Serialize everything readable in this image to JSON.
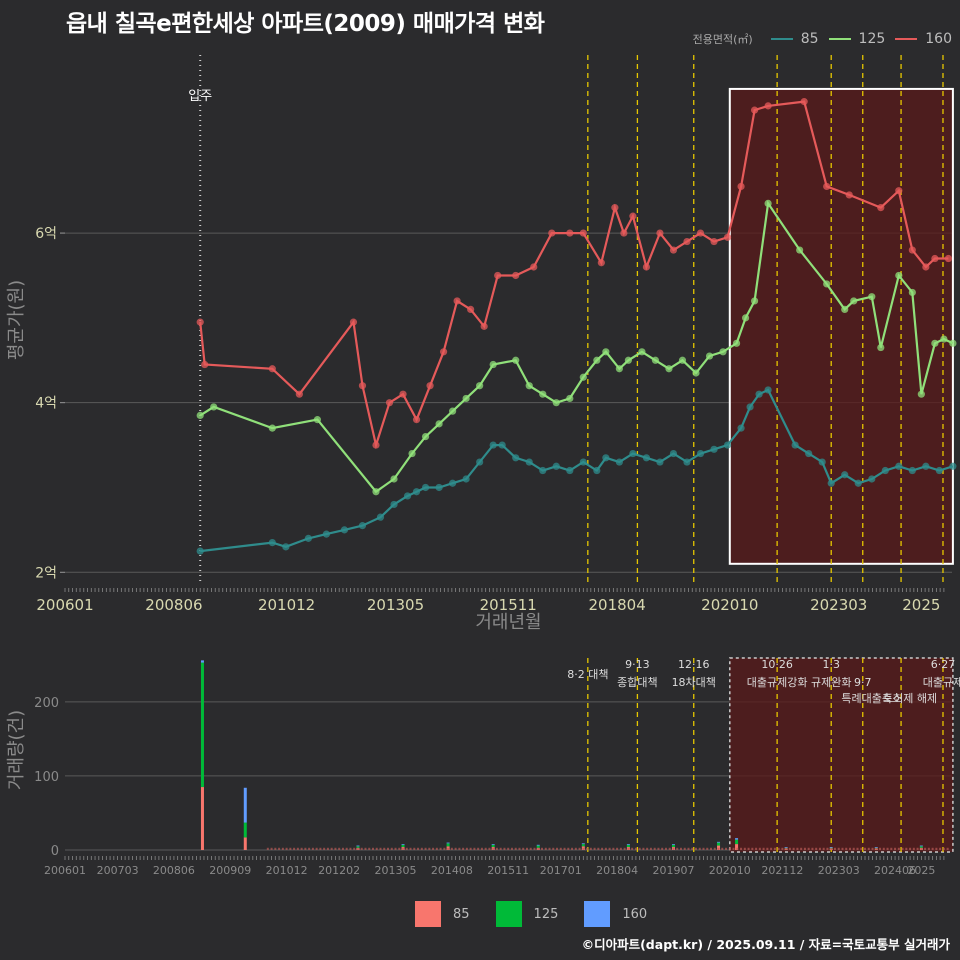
{
  "title": "읍내 칠곡e편한세상 아파트(2009) 매매가격 변화",
  "source": "©디아파트(dapt.kr) / 2025.09.11 / 자료=국토교통부 실거래가",
  "colors": {
    "background": "#2b2b2d",
    "s85": "#2f8c8c",
    "s125": "#90e07a",
    "s160": "#e55a5a",
    "bar85": "#f8766d",
    "bar125": "#00ba38",
    "bar160": "#619cff",
    "policy": "#e6c700",
    "highlight": "#5a1a1a"
  },
  "chart_data": [
    {
      "type": "line",
      "title": "읍내 칠곡e편한세상 아파트(2009) 매매가격 변화",
      "xlabel": "거래년월",
      "ylabel": "평균가(원)",
      "legend_title": "전용면적(㎡)",
      "legend_position": "top-right",
      "x_ticks": [
        "200601",
        "200806",
        "201012",
        "201305",
        "201511",
        "201804",
        "202010",
        "202303",
        "2025"
      ],
      "y_ticks": [
        {
          "value": 2,
          "label": "2억"
        },
        {
          "value": 4,
          "label": "4억"
        },
        {
          "value": 6,
          "label": "6억"
        }
      ],
      "ylim": [
        1.85,
        8.1
      ],
      "grid": true,
      "vlines": [
        {
          "x": 2009.0,
          "label": "입주",
          "style": "dotted-white"
        },
        {
          "x": 2017.6,
          "style": "dashed-yellow"
        },
        {
          "x": 2018.7,
          "style": "dashed-yellow"
        },
        {
          "x": 2019.95,
          "style": "dashed-yellow"
        },
        {
          "x": 2021.8,
          "style": "dashed-yellow"
        },
        {
          "x": 2023.0,
          "style": "dashed-yellow"
        },
        {
          "x": 2023.7,
          "style": "dashed-yellow"
        },
        {
          "x": 2024.55,
          "style": "dashed-yellow"
        },
        {
          "x": 2025.48,
          "style": "dashed-yellow"
        }
      ],
      "highlight_region": {
        "x": [
          2020.75,
          2025.7
        ],
        "y": [
          2.1,
          7.7
        ]
      },
      "series": [
        {
          "name": "85",
          "x": [
            2009.0,
            2010.6,
            2010.9,
            2011.4,
            2011.8,
            2012.2,
            2012.6,
            2013.0,
            2013.3,
            2013.6,
            2013.8,
            2014.0,
            2014.3,
            2014.6,
            2014.9,
            2015.2,
            2015.5,
            2015.7,
            2016.0,
            2016.3,
            2016.6,
            2016.9,
            2017.2,
            2017.5,
            2017.8,
            2018.0,
            2018.3,
            2018.6,
            2018.9,
            2019.2,
            2019.5,
            2019.8,
            2020.1,
            2020.4,
            2020.7,
            2021.0,
            2021.2,
            2021.4,
            2021.6,
            2022.2,
            2022.5,
            2022.8,
            2023.0,
            2023.3,
            2023.6,
            2023.9,
            2024.2,
            2024.5,
            2024.8,
            2025.1,
            2025.4,
            2025.7
          ],
          "y": [
            2.25,
            2.35,
            2.3,
            2.4,
            2.45,
            2.5,
            2.55,
            2.65,
            2.8,
            2.9,
            2.95,
            3.0,
            3.0,
            3.05,
            3.1,
            3.3,
            3.5,
            3.5,
            3.35,
            3.3,
            3.2,
            3.25,
            3.2,
            3.3,
            3.2,
            3.35,
            3.3,
            3.4,
            3.35,
            3.3,
            3.4,
            3.3,
            3.4,
            3.45,
            3.5,
            3.7,
            3.95,
            4.1,
            4.15,
            3.5,
            3.4,
            3.3,
            3.05,
            3.15,
            3.05,
            3.1,
            3.2,
            3.25,
            3.2,
            3.25,
            3.2,
            3.25
          ]
        },
        {
          "name": "125",
          "x": [
            2009.0,
            2009.3,
            2010.6,
            2011.6,
            2012.9,
            2013.3,
            2013.7,
            2014.0,
            2014.3,
            2014.6,
            2014.9,
            2015.2,
            2015.5,
            2016.0,
            2016.3,
            2016.6,
            2016.9,
            2017.2,
            2017.5,
            2017.8,
            2018.0,
            2018.3,
            2018.5,
            2018.8,
            2019.1,
            2019.4,
            2019.7,
            2020.0,
            2020.3,
            2020.6,
            2020.9,
            2021.1,
            2021.3,
            2021.6,
            2022.3,
            2022.9,
            2023.3,
            2023.5,
            2023.9,
            2024.1,
            2024.5,
            2024.8,
            2025.0,
            2025.3,
            2025.5,
            2025.7
          ],
          "y": [
            3.85,
            3.95,
            3.7,
            3.8,
            2.95,
            3.1,
            3.4,
            3.6,
            3.75,
            3.9,
            4.05,
            4.2,
            4.45,
            4.5,
            4.2,
            4.1,
            4.0,
            4.05,
            4.3,
            4.5,
            4.6,
            4.4,
            4.5,
            4.6,
            4.5,
            4.4,
            4.5,
            4.35,
            4.55,
            4.6,
            4.7,
            5.0,
            5.2,
            6.35,
            5.8,
            5.4,
            5.1,
            5.2,
            5.25,
            4.65,
            5.5,
            5.3,
            4.1,
            4.7,
            4.75,
            4.7
          ]
        },
        {
          "name": "160",
          "x": [
            2009.0,
            2009.1,
            2010.6,
            2011.2,
            2012.4,
            2012.6,
            2012.9,
            2013.2,
            2013.5,
            2013.8,
            2014.1,
            2014.4,
            2014.7,
            2015.0,
            2015.3,
            2015.6,
            2016.0,
            2016.4,
            2016.8,
            2017.2,
            2017.5,
            2017.9,
            2018.2,
            2018.4,
            2018.6,
            2018.9,
            2019.2,
            2019.5,
            2019.8,
            2020.1,
            2020.4,
            2020.7,
            2021.0,
            2021.3,
            2021.6,
            2022.4,
            2022.9,
            2023.4,
            2024.1,
            2024.5,
            2024.8,
            2025.1,
            2025.3,
            2025.6
          ],
          "y": [
            4.95,
            4.45,
            4.4,
            4.1,
            4.95,
            4.2,
            3.5,
            4.0,
            4.1,
            3.8,
            4.2,
            4.6,
            5.2,
            5.1,
            4.9,
            5.5,
            5.5,
            5.6,
            6.0,
            6.0,
            6.0,
            5.65,
            6.3,
            6.0,
            6.2,
            5.6,
            6.0,
            5.8,
            5.9,
            6.0,
            5.9,
            5.95,
            6.55,
            7.45,
            7.5,
            7.55,
            6.55,
            6.45,
            6.3,
            6.5,
            5.8,
            5.6,
            5.7,
            5.7
          ]
        }
      ]
    },
    {
      "type": "bar",
      "xlabel": "",
      "ylabel": "거래량(건)",
      "x_ticks": [
        "200601",
        "200703",
        "200806",
        "200909",
        "201012",
        "201202",
        "201305",
        "201408",
        "201511",
        "201701",
        "201804",
        "201907",
        "202010",
        "202112",
        "202303",
        "202406",
        "2025"
      ],
      "y_ticks": [
        0,
        100,
        200
      ],
      "ylim": [
        0,
        270
      ],
      "stacked": true,
      "legend_position": "bottom",
      "series": [
        {
          "name": "85",
          "x": [
            2009.05,
            2010.0,
            2012.5,
            2013.5,
            2014.5,
            2015.5,
            2016.5,
            2017.5,
            2018.5,
            2019.5,
            2020.5,
            2020.9,
            2022.0,
            2023.0,
            2024.0,
            2025.0
          ],
          "values": [
            85,
            17,
            3,
            4,
            5,
            4,
            3,
            5,
            4,
            4,
            6,
            8,
            2,
            2,
            2,
            3
          ]
        },
        {
          "name": "125",
          "x": [
            2009.05,
            2010.0,
            2012.5,
            2013.5,
            2014.5,
            2015.5,
            2016.5,
            2017.5,
            2018.5,
            2019.5,
            2020.5,
            2020.9,
            2022.0,
            2023.0,
            2024.0,
            2025.0
          ],
          "values": [
            168,
            20,
            2,
            3,
            4,
            3,
            3,
            3,
            3,
            3,
            4,
            6,
            1,
            1,
            1,
            2
          ]
        },
        {
          "name": "160",
          "x": [
            2009.05,
            2010.0,
            2012.5,
            2013.5,
            2014.5,
            2015.5,
            2016.5,
            2017.5,
            2018.5,
            2019.5,
            2020.5,
            2020.9,
            2022.0,
            2023.0,
            2024.0,
            2025.0
          ],
          "values": [
            3,
            47,
            1,
            1,
            1,
            1,
            1,
            1,
            1,
            1,
            1,
            2,
            1,
            1,
            1,
            1
          ]
        }
      ],
      "annotations": [
        {
          "x": 2017.6,
          "text": "8·2 대책"
        },
        {
          "x": 2018.7,
          "text": "9·13"
        },
        {
          "x": 2018.7,
          "text": "종합대책"
        },
        {
          "x": 2019.95,
          "text": "12·16"
        },
        {
          "x": 2019.95,
          "text": "18차대책"
        },
        {
          "x": 2021.8,
          "text": "10·26"
        },
        {
          "x": 2021.8,
          "text": "대출규제강화"
        },
        {
          "x": 2023.0,
          "text": "1·3"
        },
        {
          "x": 2023.0,
          "text": "규제완화"
        },
        {
          "x": 2023.7,
          "text": "9·7"
        },
        {
          "x": 2023.9,
          "text": "특례대출축소"
        },
        {
          "x": 2024.75,
          "text": "토허제 해제"
        },
        {
          "x": 2025.48,
          "text": "6·27"
        },
        {
          "x": 2025.48,
          "text": "대출규제"
        }
      ],
      "highlight_region": {
        "x": [
          2020.75,
          2025.7
        ]
      }
    }
  ]
}
